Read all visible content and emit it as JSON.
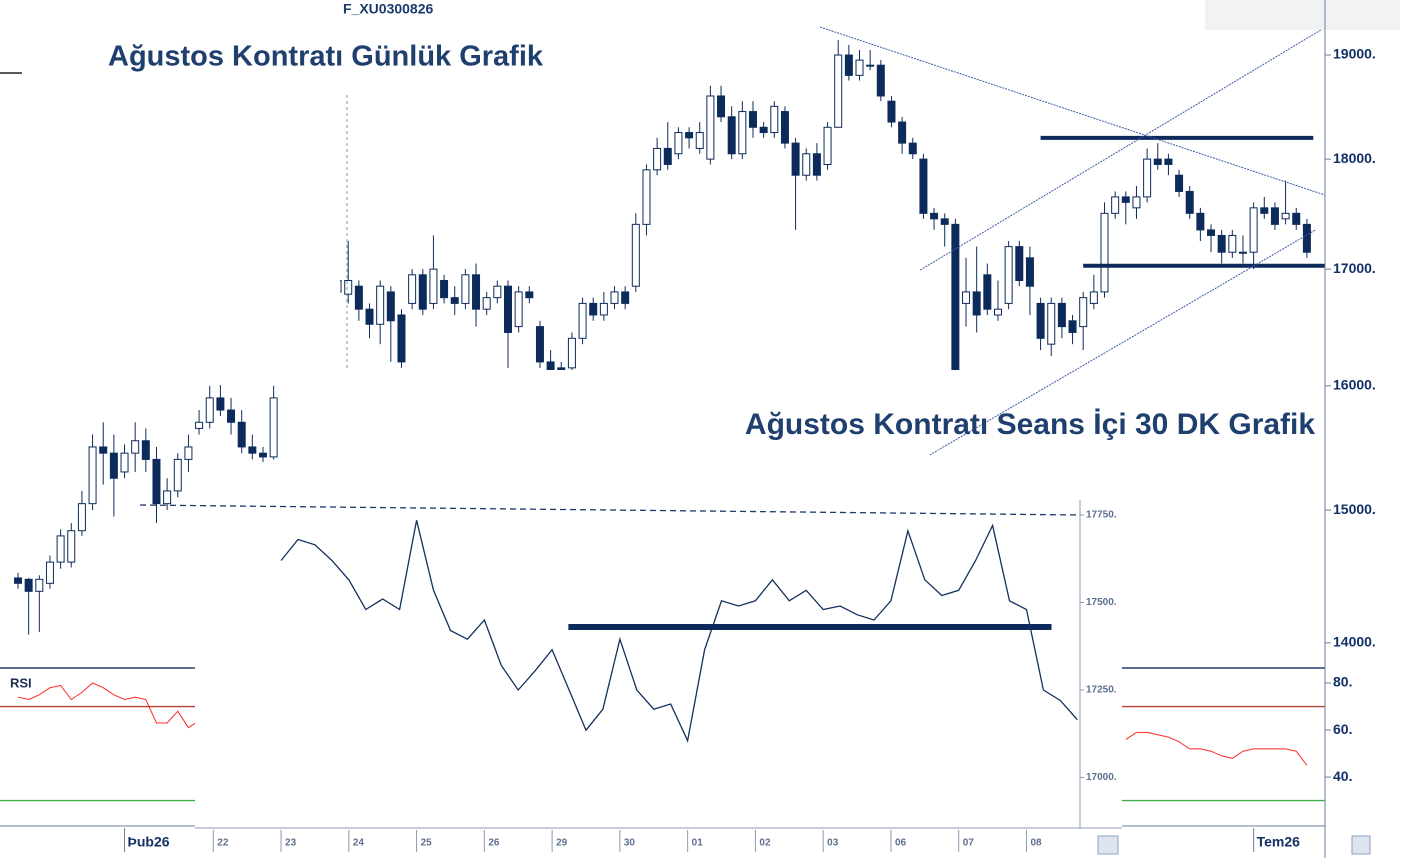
{
  "chart_data": [
    {
      "type": "candlestick",
      "symbol": "F_XU0300826",
      "title": "Ağustos Kontratı Günlük Grafik",
      "color": "#0c2b5b",
      "log_scale": true,
      "xlim": [
        -1.69,
        122.7
      ],
      "ylim": [
        13876,
        19551
      ],
      "yticks": [
        {
          "value": 19000,
          "label": "19000."
        },
        {
          "value": 18000,
          "label": "18000."
        },
        {
          "value": 17000,
          "label": "17000."
        },
        {
          "value": 16000,
          "label": "16000."
        },
        {
          "value": 15000,
          "label": "15000."
        },
        {
          "value": 14000,
          "label": "14000."
        }
      ],
      "xticks": [
        {
          "value": 10,
          "label": "Þub26"
        },
        {
          "value": 116,
          "label": "Tem26"
        }
      ],
      "ohlc": [
        [
          14480,
          14520,
          14400,
          14440
        ],
        [
          14470,
          14480,
          14060,
          14380
        ],
        [
          14380,
          14500,
          14080,
          14470
        ],
        [
          14440,
          14650,
          14400,
          14600
        ],
        [
          14600,
          14850,
          14550,
          14800
        ],
        [
          14600,
          14900,
          14560,
          14840
        ],
        [
          14840,
          15150,
          14800,
          15050
        ],
        [
          15050,
          15600,
          15000,
          15500
        ],
        [
          15500,
          15700,
          15200,
          15450
        ],
        [
          15450,
          15600,
          14950,
          15250
        ],
        [
          15300,
          15520,
          15250,
          15450
        ],
        [
          15450,
          15700,
          15300,
          15550
        ],
        [
          15550,
          15650,
          15300,
          15400
        ],
        [
          15400,
          15500,
          14900,
          15050
        ],
        [
          15050,
          15250,
          15000,
          15150
        ],
        [
          15150,
          15450,
          15100,
          15400
        ],
        [
          15400,
          15600,
          15300,
          15500
        ],
        [
          15650,
          15800,
          15600,
          15700
        ],
        [
          15700,
          16000,
          15650,
          15900
        ],
        [
          15900,
          16050,
          15750,
          15800
        ],
        [
          15800,
          15900,
          15600,
          15700
        ],
        [
          15700,
          15800,
          15450,
          15500
        ],
        [
          15500,
          15600,
          15400,
          15450
        ],
        [
          15450,
          15500,
          15380,
          15420
        ],
        [
          15420,
          16000,
          15400,
          15900
        ],
        [
          15900,
          16300,
          15850,
          16200
        ],
        [
          16200,
          16600,
          16100,
          16500
        ],
        [
          16500,
          16900,
          16400,
          16800
        ],
        [
          16800,
          17000,
          16600,
          16700
        ],
        [
          16700,
          16900,
          16500,
          16800
        ],
        [
          16800,
          17000,
          16700,
          16900
        ],
        [
          16780,
          17250,
          16700,
          16900
        ],
        [
          16850,
          16900,
          16550,
          16650
        ],
        [
          16650,
          16700,
          16400,
          16520
        ],
        [
          16520,
          16900,
          16350,
          16850
        ],
        [
          16800,
          16850,
          16200,
          16550
        ],
        [
          16600,
          16650,
          16150,
          16200
        ],
        [
          16700,
          17000,
          16650,
          16950
        ],
        [
          16950,
          17000,
          16600,
          16650
        ],
        [
          16700,
          17300,
          16650,
          17000
        ],
        [
          16900,
          16950,
          16700,
          16750
        ],
        [
          16750,
          16850,
          16600,
          16700
        ],
        [
          16700,
          17000,
          16650,
          16950
        ],
        [
          16950,
          17050,
          16500,
          16650
        ],
        [
          16650,
          16800,
          16600,
          16750
        ],
        [
          16750,
          16900,
          16700,
          16850
        ],
        [
          16850,
          16900,
          16150,
          16450
        ],
        [
          16500,
          16850,
          16450,
          16800
        ],
        [
          16800,
          16850,
          16700,
          16750
        ],
        [
          16500,
          16550,
          16150,
          16200
        ],
        [
          16200,
          16300,
          16050,
          16100
        ],
        [
          16150,
          16200,
          16050,
          16100
        ],
        [
          16150,
          16450,
          16100,
          16400
        ],
        [
          16400,
          16750,
          16350,
          16700
        ],
        [
          16700,
          16750,
          16550,
          16600
        ],
        [
          16600,
          16800,
          16550,
          16700
        ],
        [
          16700,
          16850,
          16650,
          16800
        ],
        [
          16800,
          16850,
          16650,
          16700
        ],
        [
          16850,
          17500,
          16800,
          17400
        ],
        [
          17400,
          17950,
          17300,
          17900
        ],
        [
          17900,
          18200,
          17850,
          18100
        ],
        [
          18100,
          18350,
          17900,
          17950
        ],
        [
          18050,
          18300,
          18000,
          18250
        ],
        [
          18250,
          18300,
          18100,
          18200
        ],
        [
          18100,
          18350,
          18050,
          18250
        ],
        [
          18000,
          18700,
          17950,
          18600
        ],
        [
          18600,
          18700,
          18350,
          18400
        ],
        [
          18400,
          18500,
          18000,
          18050
        ],
        [
          18050,
          18550,
          18000,
          18450
        ],
        [
          18450,
          18550,
          18200,
          18300
        ],
        [
          18300,
          18350,
          18200,
          18250
        ],
        [
          18250,
          18550,
          18200,
          18500
        ],
        [
          18450,
          18500,
          18100,
          18150
        ],
        [
          18150,
          18200,
          17350,
          17850
        ],
        [
          17850,
          18100,
          17800,
          18050
        ],
        [
          18050,
          18150,
          17800,
          17850
        ],
        [
          17950,
          18350,
          17900,
          18300
        ],
        [
          18300,
          19150,
          18300,
          19000
        ],
        [
          19000,
          19100,
          18750,
          18800
        ],
        [
          18800,
          19050,
          18750,
          18950
        ],
        [
          18900,
          19050,
          18850,
          18900
        ],
        [
          18900,
          18950,
          18550,
          18600
        ],
        [
          18550,
          18600,
          18300,
          18350
        ],
        [
          18350,
          18400,
          18050,
          18150
        ],
        [
          18150,
          18200,
          18000,
          18050
        ],
        [
          18000,
          18050,
          17450,
          17500
        ],
        [
          17500,
          17550,
          17350,
          17450
        ],
        [
          17450,
          17500,
          17200,
          17400
        ],
        [
          17400,
          17450,
          15980,
          16100
        ],
        [
          16700,
          17100,
          16500,
          16800
        ],
        [
          16800,
          17200,
          16450,
          16600
        ],
        [
          16950,
          17050,
          16600,
          16650
        ],
        [
          16600,
          16900,
          16550,
          16650
        ],
        [
          16700,
          17250,
          16650,
          17200
        ],
        [
          17200,
          17250,
          16850,
          16900
        ],
        [
          17100,
          17200,
          16600,
          16850
        ],
        [
          16700,
          16750,
          16300,
          16400
        ],
        [
          16350,
          16750,
          16250,
          16700
        ],
        [
          16700,
          16750,
          16400,
          16500
        ],
        [
          16550,
          16600,
          16350,
          16450
        ],
        [
          16500,
          16800,
          16300,
          16750
        ],
        [
          16700,
          16950,
          16650,
          16800
        ],
        [
          16800,
          17600,
          16750,
          17500
        ],
        [
          17500,
          17700,
          17450,
          17650
        ],
        [
          17650,
          17700,
          17400,
          17600
        ],
        [
          17550,
          17750,
          17450,
          17650
        ],
        [
          17650,
          18100,
          17600,
          18000
        ],
        [
          18000,
          18150,
          17900,
          17950
        ],
        [
          18000,
          18050,
          17850,
          17950
        ],
        [
          17850,
          17900,
          17650,
          17700
        ],
        [
          17700,
          17750,
          17450,
          17500
        ],
        [
          17500,
          17550,
          17250,
          17350
        ],
        [
          17350,
          17400,
          17150,
          17300
        ],
        [
          17300,
          17350,
          17050,
          17150
        ],
        [
          17150,
          17350,
          17100,
          17300
        ],
        [
          17150,
          17300,
          17050,
          17150
        ],
        [
          17150,
          17600,
          17000,
          17550
        ],
        [
          17550,
          17650,
          17450,
          17500
        ],
        [
          17550,
          17600,
          17350,
          17400
        ],
        [
          17450,
          17800,
          17400,
          17500
        ],
        [
          17500,
          17550,
          17350,
          17400
        ],
        [
          17400,
          17450,
          17100,
          17150
        ]
      ],
      "levels": [
        {
          "value": 18200,
          "from": 96,
          "to": 121.6
        },
        {
          "value": 17030,
          "from": 100,
          "to": 122.7
        }
      ],
      "lines": [
        {
          "x": [
            75.3,
            122.7
          ],
          "y": [
            19278,
            17667
          ]
        },
        {
          "x": [
            84.7,
            122.3
          ],
          "y": [
            16992,
            19248
          ]
        },
        {
          "x": [
            85.6,
            121.8
          ],
          "y": [
            15436,
            17349
          ]
        }
      ]
    },
    {
      "type": "line",
      "label": "RSI",
      "color": "#ff2a2a",
      "ylim": [
        19.6,
        86.4
      ],
      "yticks": [
        {
          "value": 80,
          "label": "80."
        },
        {
          "value": 60,
          "label": "60."
        },
        {
          "value": 40,
          "label": "40."
        }
      ],
      "ref_lines": [
        {
          "value": 70,
          "color": "#b5413c"
        },
        {
          "value": 30,
          "color": "#3fae49"
        }
      ],
      "values": [
        74,
        73,
        75,
        78,
        79,
        73,
        76,
        80,
        78,
        75,
        73,
        74,
        73,
        63,
        63,
        68,
        61,
        64,
        null,
        null,
        null,
        null,
        null,
        null,
        null,
        null,
        null,
        null,
        null,
        null,
        null,
        null,
        null,
        null,
        null,
        null,
        null,
        null,
        null,
        null,
        null,
        null,
        null,
        null,
        null,
        null,
        null,
        null,
        null,
        null,
        null,
        null,
        null,
        null,
        null,
        null,
        null,
        null,
        null,
        null,
        null,
        null,
        null,
        null,
        null,
        null,
        null,
        null,
        null,
        null,
        null,
        null,
        null,
        null,
        null,
        null,
        null,
        null,
        null,
        null,
        null,
        null,
        null,
        null,
        null,
        null,
        null,
        null,
        null,
        null,
        null,
        null,
        null,
        null,
        null,
        null,
        null,
        null,
        null,
        null,
        null,
        null,
        null,
        null,
        56,
        59,
        59,
        58,
        57,
        55,
        52,
        52,
        51,
        49,
        48,
        51,
        52,
        52,
        52,
        52,
        51,
        45
      ]
    },
    {
      "type": "line",
      "title": "Ağustos Kontratı Seans İçi 30 DK Grafik",
      "color": "#13305e",
      "xlim": [
        -0.27,
        12.79
      ],
      "ylim": [
        16864,
        17793
      ],
      "yticks": [
        {
          "value": 17750,
          "label": "17750."
        },
        {
          "value": 17500,
          "label": "17500."
        },
        {
          "value": 17250,
          "label": "17250."
        },
        {
          "value": 17000,
          "label": "17000."
        }
      ],
      "xticks": [
        {
          "value": 0,
          "label": "22"
        },
        {
          "value": 1,
          "label": "23"
        },
        {
          "value": 2,
          "label": "24"
        },
        {
          "value": 3,
          "label": "25"
        },
        {
          "value": 4,
          "label": "26"
        },
        {
          "value": 5,
          "label": "29"
        },
        {
          "value": 6,
          "label": "30"
        },
        {
          "value": 7,
          "label": "01"
        },
        {
          "value": 8,
          "label": "02"
        },
        {
          "value": 9,
          "label": "03"
        },
        {
          "value": 10,
          "label": "06"
        },
        {
          "value": 11,
          "label": "07"
        },
        {
          "value": 12,
          "label": "08"
        }
      ],
      "x": [
        1,
        1.25,
        1.5,
        1.75,
        2,
        2.25,
        2.5,
        2.75,
        3,
        3.25,
        3.5,
        3.75,
        4,
        4.25,
        4.5,
        4.75,
        5,
        5.25,
        5.5,
        5.75,
        6,
        6.25,
        6.5,
        6.75,
        7,
        7.25,
        7.5,
        7.75,
        8,
        8.25,
        8.5,
        8.75,
        9,
        9.25,
        9.5,
        9.75,
        10,
        10.25,
        10.5,
        10.75,
        11,
        11.25,
        11.5,
        11.75,
        12,
        12.25,
        12.5,
        12.75
      ],
      "values": [
        17620,
        17680,
        17665,
        17620,
        17565,
        17480,
        17510,
        17480,
        17735,
        17535,
        17420,
        17395,
        17450,
        17320,
        17250,
        17305,
        17365,
        17250,
        17135,
        17195,
        17395,
        17250,
        17195,
        17210,
        17105,
        17365,
        17505,
        17490,
        17505,
        17565,
        17505,
        17535,
        17480,
        17490,
        17465,
        17450,
        17505,
        17705,
        17565,
        17520,
        17535,
        17620,
        17720,
        17505,
        17480,
        17250,
        17220,
        17165
      ],
      "levels": [
        {
          "value": 17430,
          "from": 5.24,
          "to": 12.37
        }
      ]
    }
  ]
}
